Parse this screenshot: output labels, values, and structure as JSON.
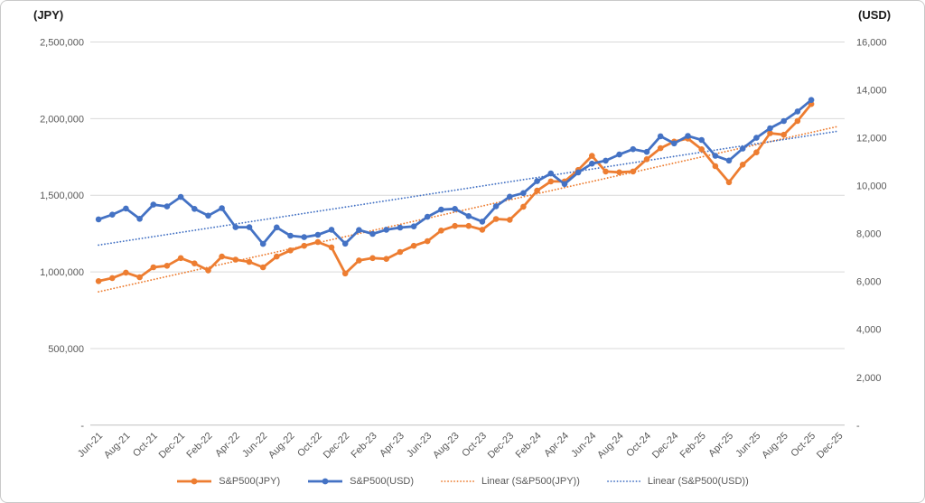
{
  "chart": {
    "left_axis_title": "(JPY)",
    "right_axis_title": "(USD)",
    "legend": {
      "jpy_label": "S&P500(JPY)",
      "usd_label": "S&P500(USD)",
      "linear_jpy_label": "Linear (S&P500(JPY))",
      "linear_usd_label": "Linear (S&P500(USD))"
    },
    "colors": {
      "jpy_series": "#ED7D31",
      "usd_series": "#4472C4",
      "gridline": "#D9D9D9",
      "axis_line": "#BFBFBF",
      "axis_text": "#595959"
    }
  },
  "chart_data": {
    "type": "line",
    "title": "",
    "x": [
      "Jun-21",
      "Jul-21",
      "Aug-21",
      "Sep-21",
      "Oct-21",
      "Nov-21",
      "Dec-21",
      "Jan-22",
      "Feb-22",
      "Mar-22",
      "Apr-22",
      "May-22",
      "Jun-22",
      "Jul-22",
      "Aug-22",
      "Sep-22",
      "Oct-22",
      "Nov-22",
      "Dec-22",
      "Jan-23",
      "Feb-23",
      "Mar-23",
      "Apr-23",
      "May-23",
      "Jun-23",
      "Jul-23",
      "Aug-23",
      "Sep-23",
      "Oct-23",
      "Nov-23",
      "Dec-23",
      "Jan-24",
      "Feb-24",
      "Mar-24",
      "Apr-24",
      "May-24",
      "Jun-24",
      "Jul-24",
      "Aug-24",
      "Sep-24",
      "Oct-24",
      "Nov-24",
      "Dec-24",
      "Jan-25",
      "Feb-25",
      "Mar-25",
      "Apr-25",
      "May-25",
      "Jun-25",
      "Jul-25",
      "Aug-25",
      "Sep-25",
      "Oct-25"
    ],
    "x_axis_tick_labels": [
      "Jun-21",
      "Aug-21",
      "Oct-21",
      "Dec-21",
      "Feb-22",
      "Apr-22",
      "Jun-22",
      "Aug-22",
      "Oct-22",
      "Dec-22",
      "Feb-23",
      "Apr-23",
      "Jun-23",
      "Aug-23",
      "Oct-23",
      "Dec-23",
      "Feb-24",
      "Apr-24",
      "Jun-24",
      "Aug-24",
      "Oct-24",
      "Dec-24",
      "Feb-25",
      "Apr-25",
      "Jun-25",
      "Aug-25",
      "Oct-25",
      "Dec-25"
    ],
    "x_axis_last_category": "Dec-25",
    "series": [
      {
        "name": "S&P500(JPY)",
        "axis": "left",
        "color": "#ED7D31",
        "values": [
          940000,
          960000,
          995000,
          965000,
          1030000,
          1040000,
          1090000,
          1055000,
          1010000,
          1100000,
          1080000,
          1065000,
          1030000,
          1100000,
          1140000,
          1170000,
          1195000,
          1160000,
          990000,
          1075000,
          1090000,
          1085000,
          1130000,
          1170000,
          1200000,
          1270000,
          1300000,
          1300000,
          1275000,
          1345000,
          1340000,
          1425000,
          1530000,
          1590000,
          1590000,
          1665000,
          1757000,
          1655000,
          1650000,
          1655000,
          1735000,
          1807000,
          1850000,
          1870000,
          1800000,
          1690000,
          1585000,
          1700000,
          1780000,
          1905000,
          1895000,
          1985000,
          2095000
        ]
      },
      {
        "name": "S&P500(USD)",
        "axis": "right",
        "color": "#4472C4",
        "values": [
          8595,
          8790,
          9045,
          8615,
          9210,
          9135,
          9530,
          9030,
          8750,
          9060,
          8265,
          8265,
          7570,
          8260,
          7910,
          7850,
          7950,
          8160,
          7580,
          8150,
          7985,
          8160,
          8250,
          8300,
          8700,
          9000,
          9030,
          8730,
          8500,
          9140,
          9540,
          9690,
          10190,
          10510,
          10070,
          10555,
          10920,
          11045,
          11300,
          11525,
          11410,
          12065,
          11765,
          12080,
          11910,
          11250,
          11050,
          11550,
          12000,
          12400,
          12700,
          13100,
          13580
        ]
      }
    ],
    "trendlines": [
      {
        "name": "Linear (S&P500(JPY))",
        "axis": "left",
        "color": "#ED7D31",
        "start_value": 870000,
        "end_value": 1950000,
        "x_start": "Jun-21",
        "x_end": "Dec-25"
      },
      {
        "name": "Linear (S&P500(USD))",
        "axis": "right",
        "color": "#4472C4",
        "start_value": 7520,
        "end_value": 12280,
        "x_start": "Jun-21",
        "x_end": "Dec-25"
      }
    ],
    "left_axis": {
      "title": "(JPY)",
      "min": 0,
      "max": 2500000,
      "step": 500000,
      "tick_labels": [
        "2,500,000",
        "2,000,000",
        "1,500,000",
        "1,000,000",
        "500,000",
        "-"
      ]
    },
    "right_axis": {
      "title": "(USD)",
      "min": 0,
      "max": 16000,
      "step": 2000,
      "tick_labels": [
        "16,000",
        "14,000",
        "12,000",
        "10,000",
        "8,000",
        "6,000",
        "4,000",
        "2,000",
        "-"
      ]
    },
    "grid": true,
    "legend_position": "bottom"
  }
}
